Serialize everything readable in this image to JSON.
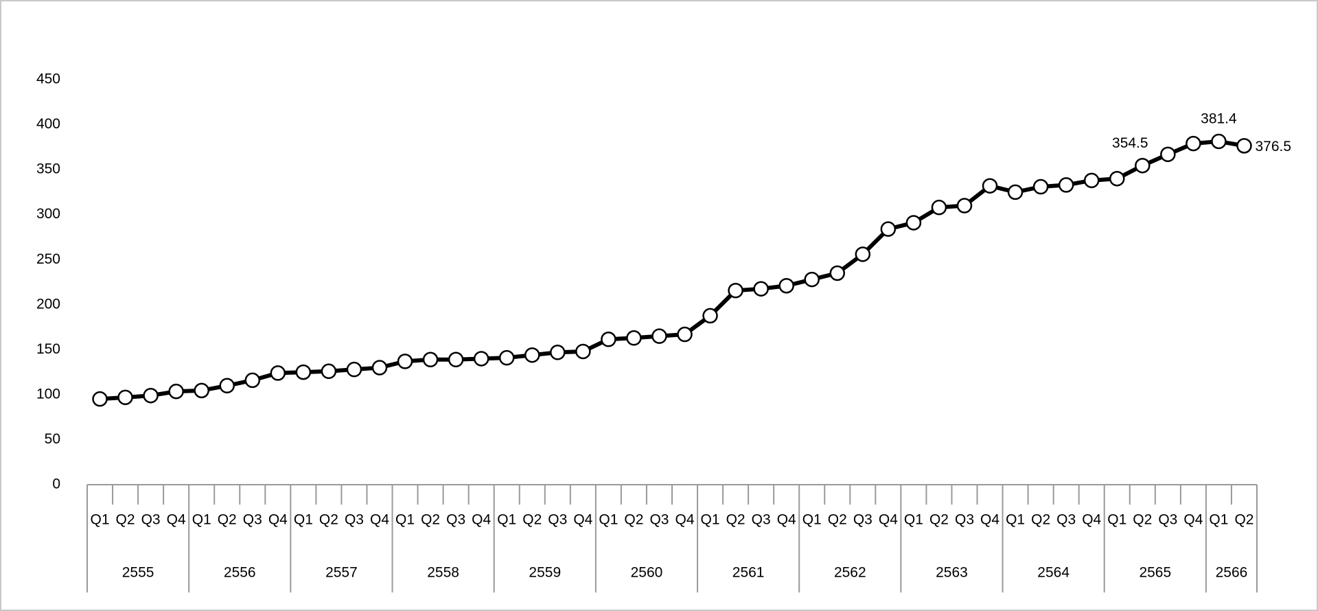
{
  "chart_data": {
    "type": "line",
    "groups": [
      {
        "name": "2555",
        "categories": [
          "Q1",
          "Q2",
          "Q3",
          "Q4"
        ]
      },
      {
        "name": "2556",
        "categories": [
          "Q1",
          "Q2",
          "Q3",
          "Q4"
        ]
      },
      {
        "name": "2557",
        "categories": [
          "Q1",
          "Q2",
          "Q3",
          "Q4"
        ]
      },
      {
        "name": "2558",
        "categories": [
          "Q1",
          "Q2",
          "Q3",
          "Q4"
        ]
      },
      {
        "name": "2559",
        "categories": [
          "Q1",
          "Q2",
          "Q3",
          "Q4"
        ]
      },
      {
        "name": "2560",
        "categories": [
          "Q1",
          "Q2",
          "Q3",
          "Q4"
        ]
      },
      {
        "name": "2561",
        "categories": [
          "Q1",
          "Q2",
          "Q3",
          "Q4"
        ]
      },
      {
        "name": "2562",
        "categories": [
          "Q1",
          "Q2",
          "Q3",
          "Q4"
        ]
      },
      {
        "name": "2563",
        "categories": [
          "Q1",
          "Q2",
          "Q3",
          "Q4"
        ]
      },
      {
        "name": "2564",
        "categories": [
          "Q1",
          "Q2",
          "Q3",
          "Q4"
        ]
      },
      {
        "name": "2565",
        "categories": [
          "Q1",
          "Q2",
          "Q3",
          "Q4"
        ]
      },
      {
        "name": "2566",
        "categories": [
          "Q1",
          "Q2"
        ]
      }
    ],
    "values": [
      95.2,
      97,
      99,
      103.6,
      104.6,
      110,
      116,
      124,
      125,
      126,
      128,
      130,
      137,
      139,
      139,
      140,
      141,
      144,
      147,
      148,
      161.5,
      163,
      165,
      167,
      187.7,
      215.7,
      217.6,
      221,
      228,
      235,
      256,
      284,
      291,
      308,
      310,
      332,
      325,
      331,
      333,
      338,
      340,
      354.5,
      367,
      379,
      381.4,
      376.5
    ],
    "value_labels": [
      null,
      null,
      null,
      null,
      null,
      null,
      null,
      null,
      null,
      null,
      null,
      null,
      null,
      null,
      null,
      null,
      null,
      null,
      null,
      null,
      null,
      null,
      null,
      null,
      null,
      null,
      null,
      null,
      null,
      null,
      null,
      null,
      null,
      null,
      null,
      null,
      null,
      null,
      null,
      null,
      null,
      "354.5",
      null,
      null,
      "381.4",
      "376.5"
    ],
    "color": "#000000",
    "ylim": [
      0,
      450
    ],
    "yticks": [
      0,
      50,
      100,
      150,
      200,
      250,
      300,
      350,
      400,
      450
    ],
    "grid": false
  }
}
